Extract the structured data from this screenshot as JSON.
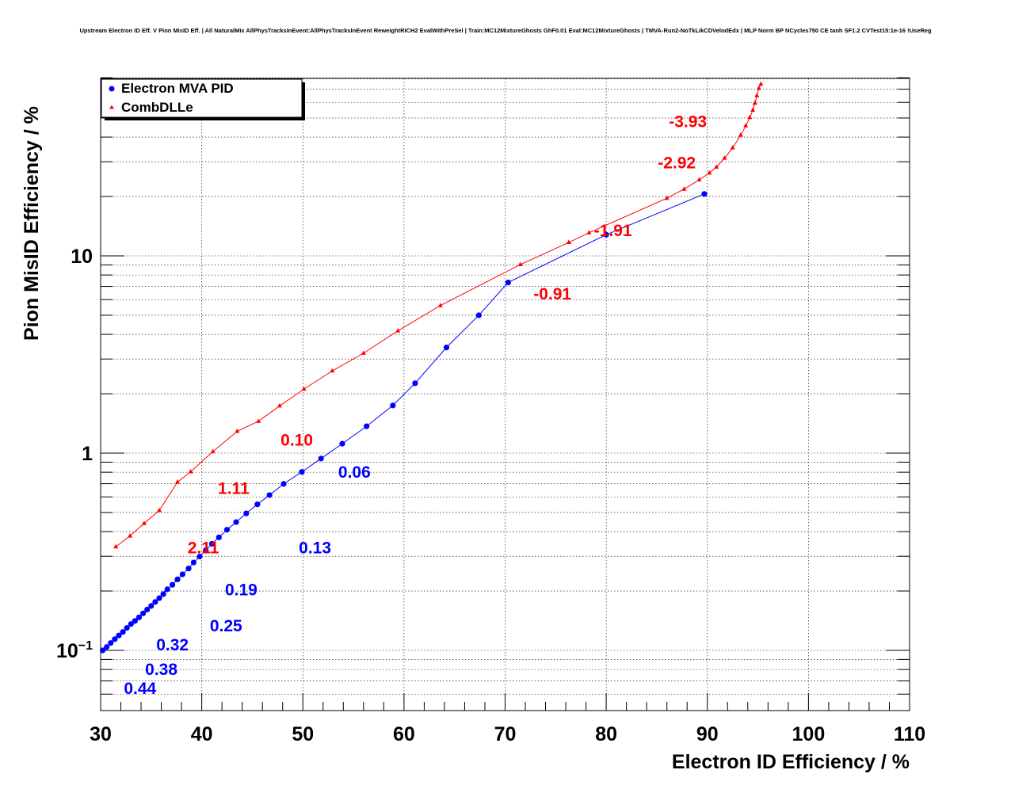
{
  "chart_data": {
    "type": "line",
    "title": "Upstream Electron ID Eff. V Pion MisID Eff. | All NaturalMix AllPhysTracksInEvent:AllPhysTracksInEvent ReweightRICH2 EvalWithPreSel | Train:MC12MixtureGhosts GhF0.01 Eval:MC12MixtureGhosts | TMVA-Run2-NoTkLikCDVelodEdx | MLP Norm BP NCycles750 CE tanh SF1.2 CVTest15:1e-16 !UseReg",
    "xlabel": "Electron ID Efficiency / %",
    "ylabel": "Pion MisID Efficiency / %",
    "xlim": [
      30,
      110
    ],
    "ylim": [
      0.055,
      80
    ],
    "ylog": true,
    "grid": true,
    "legend_position": "top-left",
    "x_ticks": [
      "30",
      "40",
      "50",
      "60",
      "70",
      "80",
      "90",
      "100",
      "110"
    ],
    "y_ticks": [
      {
        "value": 0.1,
        "base": "10",
        "exp": "−1"
      },
      {
        "value": 1,
        "label": "1"
      },
      {
        "value": 10,
        "label": "10"
      }
    ],
    "series": [
      {
        "name": "Electron MVA PID",
        "color": "#0000ff",
        "marker": "circle",
        "points": [
          [
            30.2,
            0.1
          ],
          [
            30.6,
            0.104
          ],
          [
            31.0,
            0.109
          ],
          [
            31.4,
            0.114
          ],
          [
            31.8,
            0.119
          ],
          [
            32.2,
            0.124
          ],
          [
            32.6,
            0.13
          ],
          [
            33.0,
            0.136
          ],
          [
            33.4,
            0.141
          ],
          [
            33.8,
            0.147
          ],
          [
            34.2,
            0.154
          ],
          [
            34.6,
            0.161
          ],
          [
            35.0,
            0.168
          ],
          [
            35.4,
            0.176
          ],
          [
            35.8,
            0.184
          ],
          [
            36.2,
            0.193
          ],
          [
            36.6,
            0.204
          ],
          [
            37.1,
            0.215
          ],
          [
            37.6,
            0.229
          ],
          [
            38.1,
            0.243
          ],
          [
            38.7,
            0.26
          ],
          [
            39.2,
            0.279
          ],
          [
            39.8,
            0.299
          ],
          [
            40.4,
            0.322
          ],
          [
            41.0,
            0.347
          ],
          [
            41.7,
            0.374
          ],
          [
            42.5,
            0.409
          ],
          [
            43.4,
            0.447
          ],
          [
            44.4,
            0.495
          ],
          [
            45.5,
            0.55
          ],
          [
            46.7,
            0.613
          ],
          [
            48.1,
            0.698
          ],
          [
            49.9,
            0.803
          ],
          [
            51.8,
            0.939
          ],
          [
            53.9,
            1.116
          ],
          [
            56.3,
            1.368
          ],
          [
            58.9,
            1.745
          ],
          [
            61.1,
            2.26
          ],
          [
            64.2,
            3.432
          ],
          [
            67.4,
            5.0
          ],
          [
            70.3,
            7.33
          ],
          [
            80.0,
            12.8
          ],
          [
            89.7,
            20.6
          ]
        ],
        "labels": [
          {
            "x": 53.5,
            "y": 0.75,
            "text": "0.06"
          },
          {
            "x": 49.6,
            "y": 0.31,
            "text": "0.13"
          },
          {
            "x": 42.3,
            "y": 0.19,
            "text": "0.19"
          },
          {
            "x": 40.8,
            "y": 0.125,
            "text": "0.25"
          },
          {
            "x": 35.5,
            "y": 0.1,
            "text": "0.32"
          },
          {
            "x": 34.4,
            "y": 0.075,
            "text": "0.38"
          },
          {
            "x": 32.3,
            "y": 0.06,
            "text": "0.44"
          }
        ]
      },
      {
        "name": "CombDLLe",
        "color": "#ff0000",
        "marker": "triangle",
        "points": [
          [
            31.5,
            0.335
          ],
          [
            32.9,
            0.38
          ],
          [
            34.3,
            0.44
          ],
          [
            35.8,
            0.512
          ],
          [
            37.6,
            0.713
          ],
          [
            38.9,
            0.805
          ],
          [
            41.1,
            1.018
          ],
          [
            43.5,
            1.289
          ],
          [
            45.6,
            1.45
          ],
          [
            47.7,
            1.735
          ],
          [
            50.1,
            2.11
          ],
          [
            52.9,
            2.61
          ],
          [
            56.0,
            3.21
          ],
          [
            59.4,
            4.17
          ],
          [
            63.6,
            5.6
          ],
          [
            71.5,
            9.03
          ],
          [
            76.3,
            11.7
          ],
          [
            78.3,
            13.1
          ],
          [
            86.0,
            19.6
          ],
          [
            87.7,
            21.8
          ],
          [
            89.2,
            24.3
          ],
          [
            90.2,
            26.3
          ],
          [
            90.9,
            28.2
          ],
          [
            91.7,
            31.3
          ],
          [
            92.5,
            35.3
          ],
          [
            93.3,
            40.9
          ],
          [
            93.8,
            45.7
          ],
          [
            94.2,
            50.3
          ],
          [
            94.5,
            54.8
          ],
          [
            94.7,
            59.5
          ],
          [
            94.9,
            64.9
          ],
          [
            95.1,
            70.7
          ],
          [
            95.3,
            74.3
          ]
        ],
        "labels": [
          {
            "x": 86.2,
            "y": 45.0,
            "text": "-3.93"
          },
          {
            "x": 85.1,
            "y": 27.8,
            "text": "-2.92"
          },
          {
            "x": 78.8,
            "y": 12.6,
            "text": "-1.91"
          },
          {
            "x": 72.8,
            "y": 6.0,
            "text": "-0.91"
          },
          {
            "x": 47.8,
            "y": 1.09,
            "text": "0.10"
          },
          {
            "x": 41.6,
            "y": 0.62,
            "text": "1.11"
          },
          {
            "x": 38.6,
            "y": 0.31,
            "text": "2.11"
          }
        ]
      }
    ]
  }
}
